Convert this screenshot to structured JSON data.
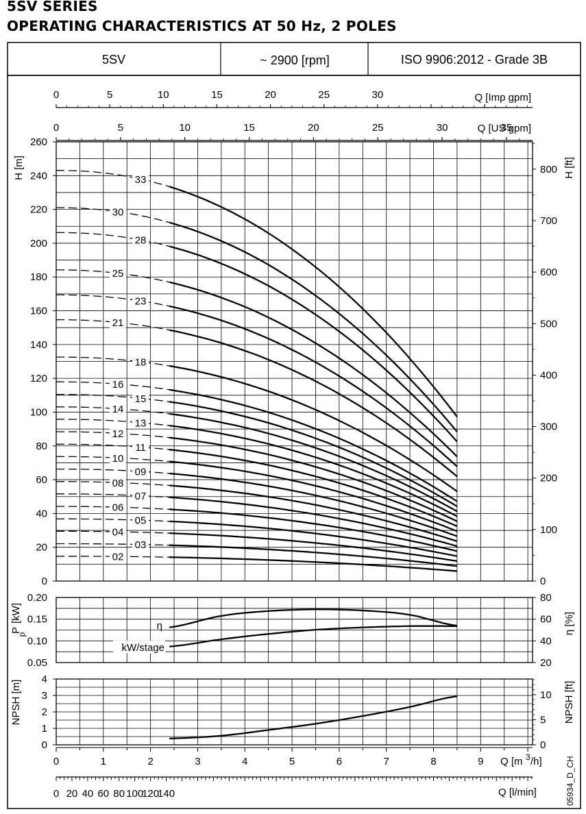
{
  "title_line1": "5SV SERIES",
  "title_line2": "OPERATING CHARACTERISTICS AT 50 Hz, 2 POLES",
  "header": {
    "model": "5SV",
    "speed": "~ 2900 [rpm]",
    "standard": "ISO 9906:2012 - Grade 3B"
  },
  "doc_code": "05934_D_CH",
  "chart_data": {
    "type": "line",
    "x_axes": {
      "imp_gpm": {
        "label": "Q [Imp gpm]",
        "ticks": [
          0,
          5,
          10,
          15,
          20,
          25,
          30
        ]
      },
      "us_gpm": {
        "label": "Q [US gpm]",
        "ticks": [
          0,
          5,
          10,
          15,
          20,
          25,
          30,
          35
        ]
      },
      "m3h": {
        "label": "Q [m³/h]",
        "ticks": [
          0,
          1,
          2,
          3,
          4,
          5,
          6,
          7,
          8,
          9
        ],
        "range": [
          0,
          10.1
        ]
      },
      "lmin": {
        "label": "Q [l/min]",
        "ticks": [
          0,
          20,
          40,
          60,
          80,
          100,
          120,
          140
        ]
      }
    },
    "operating_range_m3h": [
      2.4,
      8.5
    ],
    "head_chart": {
      "ylabel_left": "H [m]",
      "ylabel_right": "H [ft]",
      "ylim": [
        0,
        260
      ],
      "yticks_left": [
        0,
        20,
        40,
        60,
        80,
        100,
        120,
        140,
        160,
        180,
        200,
        220,
        240,
        260
      ],
      "yticks_right": [
        0,
        100,
        200,
        300,
        400,
        500,
        600,
        700,
        800
      ],
      "curves": [
        {
          "stages": "02",
          "h0": 14.7,
          "h_end": 5.7
        },
        {
          "stages": "03",
          "h0": 22.1,
          "h_end": 8.6
        },
        {
          "stages": "04",
          "h0": 29.5,
          "h_end": 11.5
        },
        {
          "stages": "05",
          "h0": 36.8,
          "h_end": 14.4
        },
        {
          "stages": "06",
          "h0": 44.2,
          "h_end": 17.2
        },
        {
          "stages": "07",
          "h0": 51.6,
          "h_end": 20.1
        },
        {
          "stages": "08",
          "h0": 58.9,
          "h_end": 23.0
        },
        {
          "stages": "09",
          "h0": 66.3,
          "h_end": 25.9
        },
        {
          "stages": "10",
          "h0": 73.7,
          "h_end": 28.7
        },
        {
          "stages": "11",
          "h0": 81.0,
          "h_end": 31.6
        },
        {
          "stages": "12",
          "h0": 88.4,
          "h_end": 34.5
        },
        {
          "stages": "13",
          "h0": 95.8,
          "h_end": 37.4
        },
        {
          "stages": "14",
          "h0": 103.1,
          "h_end": 40.2
        },
        {
          "stages": "15",
          "h0": 110.5,
          "h_end": 43.1
        },
        {
          "stages": "16",
          "h0": 117.9,
          "h_end": 46.0
        },
        {
          "stages": "18",
          "h0": 132.6,
          "h_end": 51.7
        },
        {
          "stages": "21",
          "h0": 154.7,
          "h_end": 60.3
        },
        {
          "stages": "23",
          "h0": 169.4,
          "h_end": 66.1
        },
        {
          "stages": "25",
          "h0": 184.2,
          "h_end": 71.8
        },
        {
          "stages": "28",
          "h0": 206.3,
          "h_end": 80.5
        },
        {
          "stages": "30",
          "h0": 221.0,
          "h_end": 86.2
        },
        {
          "stages": "33",
          "h0": 243.1,
          "h_end": 94.8
        }
      ]
    },
    "power_efficiency_chart": {
      "ylabel_left": "Pp [kW]",
      "ylabel_right": "η [%]",
      "ylim_left": [
        0.05,
        0.2
      ],
      "yticks_left": [
        "0.05",
        "0.10",
        "0.15",
        "0.20"
      ],
      "ylim_right": [
        20,
        80
      ],
      "yticks_right": [
        20,
        40,
        60,
        80
      ],
      "series": [
        {
          "name": "η",
          "x": [
            2.4,
            3.5,
            4.5,
            5.5,
            6.5,
            7.5,
            8.5
          ],
          "y": [
            52.5,
            63,
            67.5,
            69,
            68,
            64,
            54
          ]
        },
        {
          "name": "kW/stage",
          "x": [
            2.4,
            3.5,
            4.5,
            5.5,
            6.5,
            7.5,
            8.5
          ],
          "y": [
            0.087,
            0.1035,
            0.116,
            0.1255,
            0.131,
            0.134,
            0.134
          ]
        }
      ]
    },
    "npsh_chart": {
      "ylabel_left": "NPSH [m]",
      "ylabel_right": "NPSH [ft]",
      "ylim": [
        0,
        4
      ],
      "yticks_left": [
        0,
        1,
        2,
        3,
        4
      ],
      "yticks_right": [
        0,
        5,
        10
      ],
      "series": [
        {
          "name": "NPSH",
          "x": [
            2.4,
            3.5,
            4.5,
            5.5,
            6.5,
            7.5,
            8.5
          ],
          "y": [
            0.38,
            0.55,
            0.9,
            1.28,
            1.75,
            2.3,
            2.95
          ]
        }
      ]
    }
  }
}
